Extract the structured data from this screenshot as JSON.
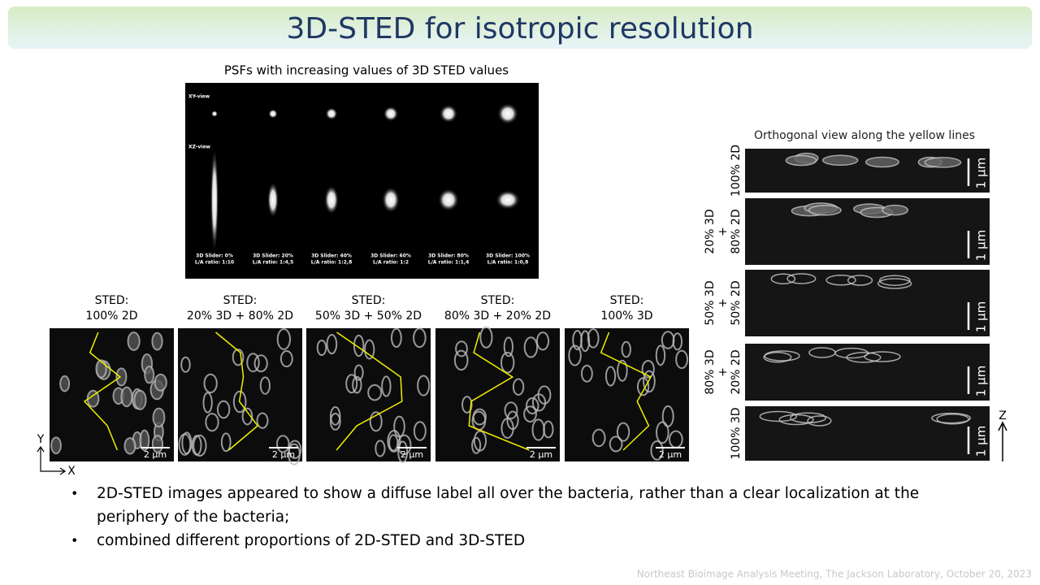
{
  "title": "3D-STED for isotropic resolution",
  "psf": {
    "caption": "PSFs with increasing values of 3D STED values",
    "xy_label": "XY-view",
    "xz_label": "XZ-view",
    "columns": [
      {
        "slider": "3D Slider: 0%",
        "ratio": "L/A ratio: 1:10"
      },
      {
        "slider": "3D Slider: 20%",
        "ratio": "L/A ratio: 1:4,5"
      },
      {
        "slider": "3D Slider: 40%",
        "ratio": "L/A ratio: 1:2,8"
      },
      {
        "slider": "3D Slider: 60%",
        "ratio": "L/A ratio: 1:2"
      },
      {
        "slider": "3D Slider: 80%",
        "ratio": "L/A ratio: 1:1,4"
      },
      {
        "slider": "3D Slider: 100%",
        "ratio": "L/A ratio: 1:0,8"
      }
    ]
  },
  "sted": {
    "panels": [
      {
        "lines": [
          "STED:",
          "100% 2D"
        ],
        "scale": "2 µm"
      },
      {
        "lines": [
          "STED:",
          "20% 3D + 80% 2D"
        ],
        "scale": "2 µm"
      },
      {
        "lines": [
          "STED:",
          "50% 3D + 50% 2D"
        ],
        "scale": "2 µm"
      },
      {
        "lines": [
          "STED:",
          "80% 3D + 20% 2D"
        ],
        "scale": "2 µm"
      },
      {
        "lines": [
          "STED:",
          "100% 3D"
        ],
        "scale": "2 µm"
      }
    ],
    "axis_y": "Y",
    "axis_x": "X"
  },
  "orthogonal": {
    "title": "Orthogonal view along the yellow lines",
    "rows": [
      {
        "lines": [
          "100% 2D"
        ],
        "scale": "1 µm"
      },
      {
        "lines": [
          "20% 3D",
          "+",
          "80% 2D"
        ],
        "scale": "1 µm"
      },
      {
        "lines": [
          "50% 3D",
          "+",
          "50% 2D"
        ],
        "scale": "1 µm"
      },
      {
        "lines": [
          "80% 3D",
          "+",
          "20% 2D"
        ],
        "scale": "1 µm"
      },
      {
        "lines": [
          "100% 3D"
        ],
        "scale": "1 µm"
      }
    ],
    "axis_z": "Z"
  },
  "bullets": [
    [
      "2D-STED images appeared to show a diffuse label all over the bacteria, rather than a clear localization at the",
      "periphery of the bacteria;"
    ],
    [
      "combined different proportions of 2D-STED and 3D-STED"
    ]
  ],
  "footer": "Northeast Bioimage Analysis Meeting, The Jackson Laboratory, October 20, 2023"
}
